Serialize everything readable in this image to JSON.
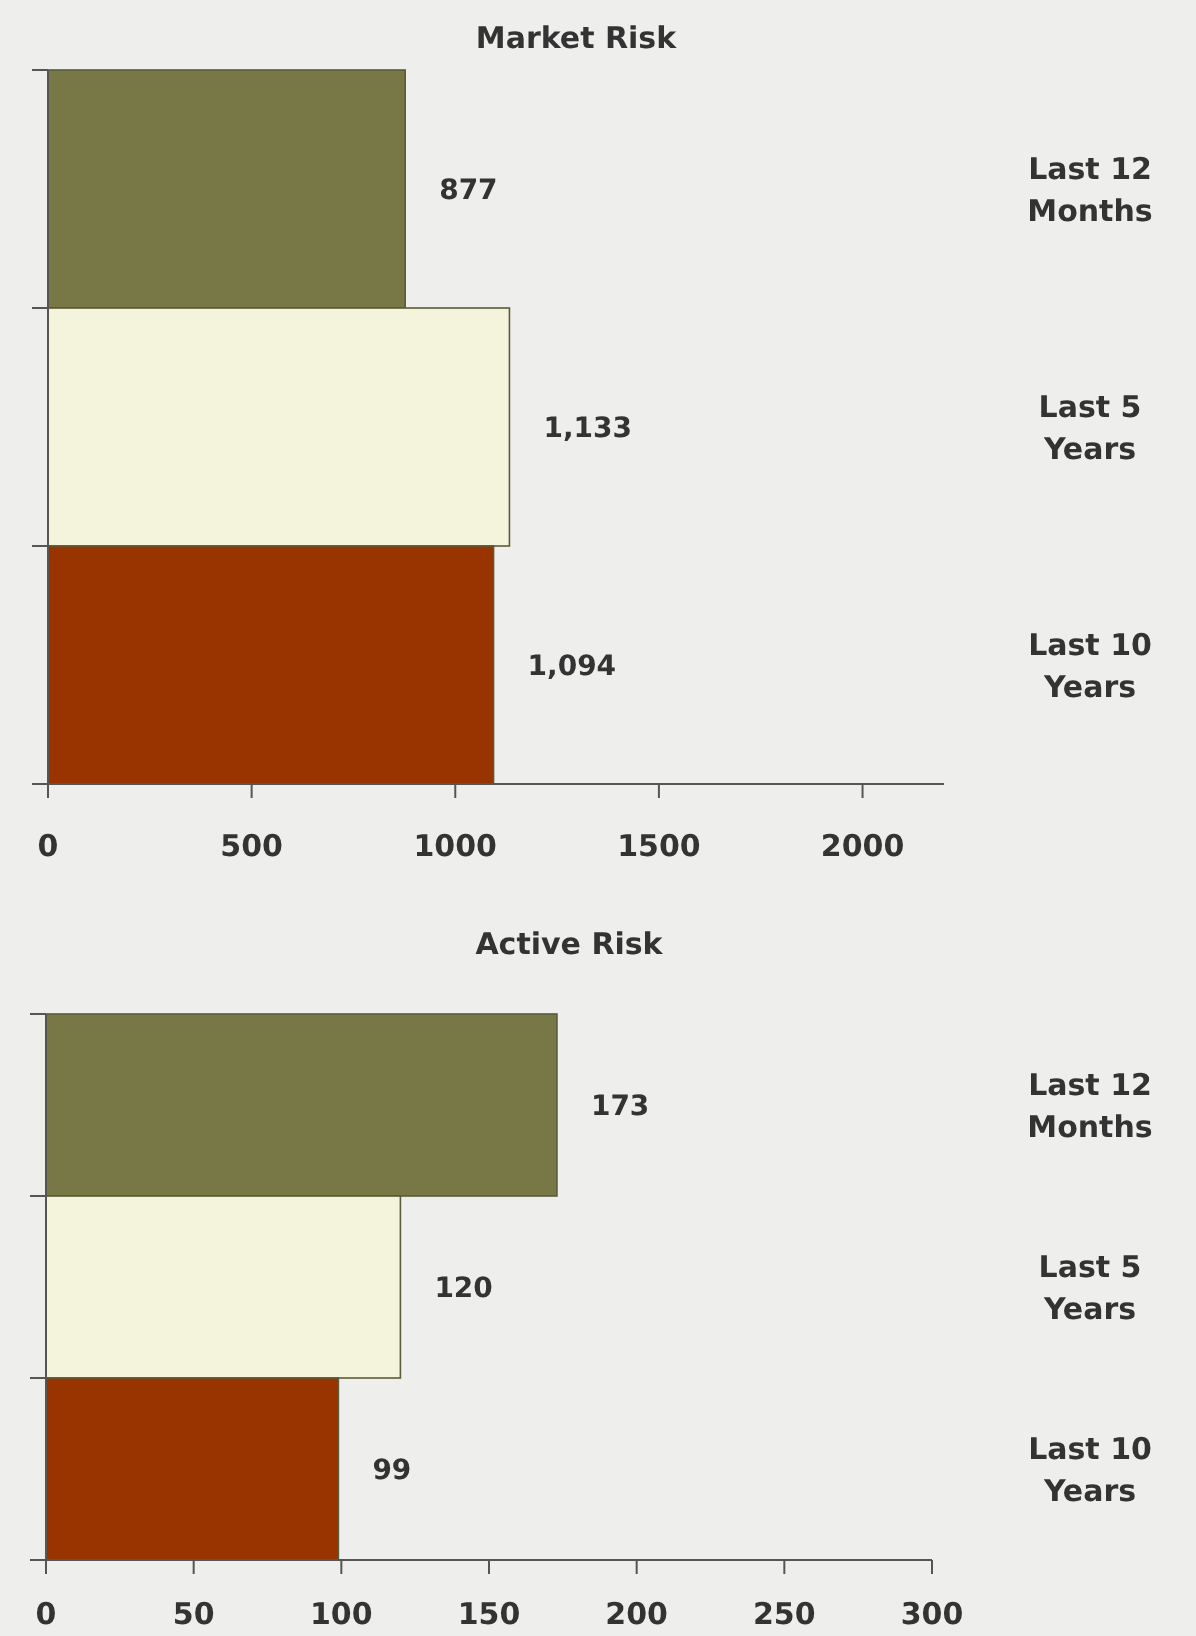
{
  "chart_data": [
    {
      "type": "bar",
      "orientation": "horizontal",
      "title": "Market Risk",
      "categories": [
        "Last 12 Months",
        "Last 5 Years",
        "Last 10 Years"
      ],
      "values": [
        877,
        1133,
        1094
      ],
      "colors": [
        "#787846",
        "#f4f4dc",
        "#993300"
      ],
      "value_labels": [
        "877",
        "1,133",
        "1,094"
      ],
      "xlim": [
        0,
        2200
      ],
      "xticks": [
        0,
        500,
        1000,
        1500,
        2000
      ],
      "grid": false
    },
    {
      "type": "bar",
      "orientation": "horizontal",
      "title": "Active Risk",
      "categories": [
        "Last 12 Months",
        "Last 5 Years",
        "Last 10 Years"
      ],
      "values": [
        173,
        120,
        99
      ],
      "colors": [
        "#787846",
        "#f4f4dc",
        "#993300"
      ],
      "value_labels": [
        "173",
        "120",
        "99"
      ],
      "xlim": [
        0,
        300
      ],
      "xticks": [
        0,
        50,
        100,
        150,
        200,
        250,
        300
      ],
      "grid": false
    }
  ]
}
